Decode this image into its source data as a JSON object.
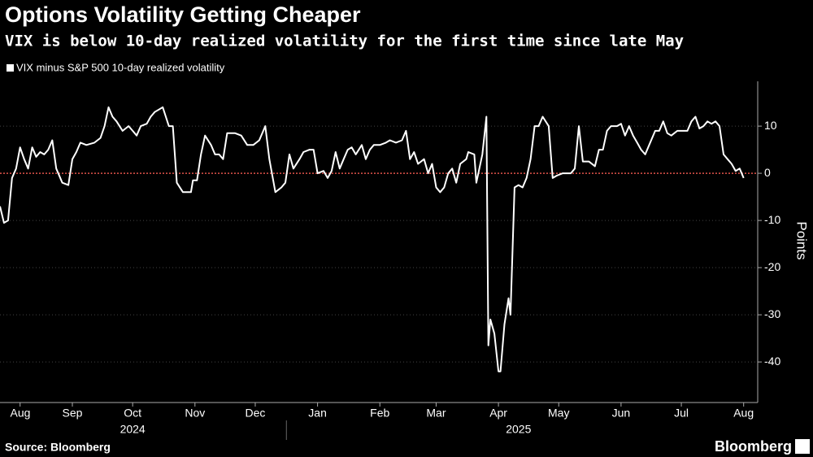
{
  "chart_data": {
    "type": "line",
    "title": "Options Volatility Getting Cheaper",
    "subtitle": "VIX is below 10-day realized volatility for the first time since late May",
    "y_axis_label": "Points",
    "source": "Source: Bloomberg",
    "brand": "Bloomberg",
    "reference_line": {
      "value": 0,
      "color": "#e0524a"
    },
    "xlim": [
      10,
      387
    ],
    "ylim": [
      -48.6,
      19.5
    ],
    "yticks": [
      -40,
      -30,
      -20,
      -10,
      0,
      10
    ],
    "xticks": [
      {
        "value": 20,
        "label": "Aug"
      },
      {
        "value": 46,
        "label": "Sep"
      },
      {
        "value": 76,
        "label": "Oct"
      },
      {
        "value": 107,
        "label": "Nov"
      },
      {
        "value": 137,
        "label": "Dec"
      },
      {
        "value": 168,
        "label": "Jan"
      },
      {
        "value": 199,
        "label": "Feb"
      },
      {
        "value": 227,
        "label": "Mar"
      },
      {
        "value": 258,
        "label": "Apr"
      },
      {
        "value": 288,
        "label": "May"
      },
      {
        "value": 319,
        "label": "Jun"
      },
      {
        "value": 349,
        "label": "Jul"
      },
      {
        "value": 380,
        "label": "Aug"
      }
    ],
    "year_labels": [
      {
        "value": 76,
        "label": "2024"
      },
      {
        "value": 268,
        "label": "2025"
      }
    ],
    "x": [
      10,
      12,
      14,
      16,
      18,
      20,
      22,
      24,
      26,
      28,
      30,
      32,
      34,
      36,
      38,
      41,
      44,
      46,
      48,
      50,
      53,
      57,
      60,
      62,
      64,
      66,
      68,
      71,
      74,
      76,
      78,
      80,
      83,
      85,
      87,
      89,
      91,
      94,
      96,
      98,
      101,
      105,
      106,
      108,
      110,
      112,
      115,
      117,
      119,
      121,
      123,
      127,
      130,
      133,
      136,
      139,
      142,
      144,
      147,
      150,
      152,
      154,
      156,
      159,
      161,
      164,
      166,
      168,
      171,
      173,
      175,
      177,
      179,
      181,
      183,
      185,
      187,
      190,
      192,
      194,
      196,
      199,
      202,
      204,
      207,
      210,
      212,
      214,
      216,
      218,
      221,
      223,
      225,
      227,
      229,
      231,
      233,
      235,
      237,
      239,
      242,
      243,
      246,
      247,
      250,
      252,
      253,
      254,
      256,
      258,
      259,
      261,
      263,
      264,
      266,
      268,
      270,
      272,
      274,
      276,
      278,
      280,
      283,
      285,
      287,
      290,
      292,
      294,
      296,
      298,
      300,
      303,
      306,
      308,
      310,
      312,
      314,
      317,
      319,
      321,
      323,
      325,
      327,
      329,
      331,
      333,
      336,
      338,
      340,
      342,
      344,
      347,
      349,
      352,
      354,
      356,
      358,
      360,
      362,
      364,
      366,
      368,
      370,
      372,
      374,
      376,
      378,
      380
    ],
    "series": [
      {
        "name": "VIX minus S&P 500 10-day realized volatility",
        "color": "#ffffff",
        "values": [
          -7,
          -10.5,
          -10,
          -1,
          1,
          5.5,
          3,
          1,
          5.5,
          3.5,
          4.5,
          4,
          5,
          7,
          1,
          -2,
          -2.5,
          3,
          4.5,
          6.5,
          6,
          6.5,
          7.5,
          10,
          14,
          12,
          11,
          9,
          10,
          9,
          8,
          10,
          10.5,
          12,
          13,
          13.5,
          14,
          10,
          10,
          -2,
          -4,
          -4,
          -1.5,
          -1.5,
          4,
          8,
          6,
          4,
          4,
          3,
          8.5,
          8.5,
          8,
          6,
          6,
          7,
          10,
          3,
          -4,
          -3,
          -2,
          4,
          1,
          3,
          4.5,
          5,
          5,
          0,
          0.5,
          -1,
          0.5,
          4.5,
          1,
          3,
          5,
          5.5,
          4,
          6,
          3,
          5,
          6,
          6,
          6.5,
          7,
          6.5,
          7,
          9,
          3,
          4.5,
          2,
          3,
          0,
          2,
          -3,
          -4,
          -3,
          0,
          1,
          -2,
          2,
          3,
          4.5,
          4,
          -2,
          4,
          12,
          -36.5,
          -31,
          -34,
          -42,
          -42,
          -32,
          -26.5,
          -30,
          -3,
          -2.5,
          -3,
          -1,
          3,
          10,
          10,
          12,
          10,
          -1,
          -0.5,
          0,
          0,
          0,
          1,
          10,
          2.5,
          2.5,
          1.5,
          5,
          5,
          9,
          10,
          10,
          10.5,
          8,
          10,
          8,
          6.5,
          5,
          4,
          6,
          9,
          9,
          11,
          8.5,
          8,
          9,
          9,
          9,
          11,
          12,
          9.5,
          10,
          11,
          10.5,
          11,
          10,
          4,
          3,
          2,
          0.5,
          1,
          -1
        ]
      }
    ]
  }
}
